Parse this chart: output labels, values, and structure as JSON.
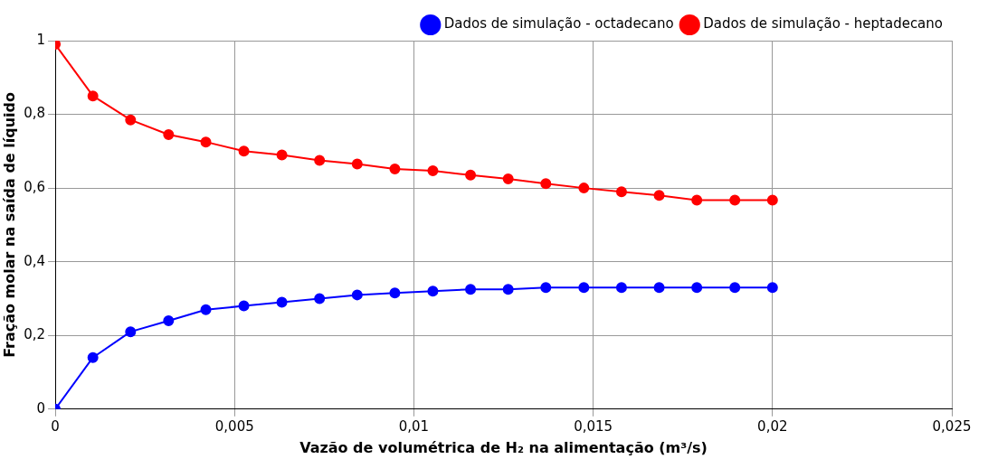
{
  "chart_data": {
    "type": "line",
    "xlabel": "Vazão de volumétrica de H₂ na alimentação (m³/s)",
    "ylabel": "Fração molar na saída de líquido",
    "x": [
      0,
      0.00105,
      0.0021,
      0.00316,
      0.0042,
      0.00526,
      0.00632,
      0.00737,
      0.00842,
      0.00947,
      0.01053,
      0.01158,
      0.01263,
      0.01368,
      0.01474,
      0.01579,
      0.01684,
      0.01789,
      0.01895,
      0.02
    ],
    "series": [
      {
        "name": "Dados de simulação - octadecano",
        "color": "#0000ff",
        "values": [
          0,
          0.14,
          0.21,
          0.24,
          0.27,
          0.28,
          0.29,
          0.3,
          0.31,
          0.315,
          0.32,
          0.325,
          0.325,
          0.33,
          0.33,
          0.33,
          0.33,
          0.33,
          0.33,
          0.33
        ]
      },
      {
        "name": "Dados de simulação - heptadecano",
        "color": "#ff0000",
        "values": [
          0.99,
          0.85,
          0.785,
          0.745,
          0.725,
          0.7,
          0.69,
          0.675,
          0.665,
          0.652,
          0.647,
          0.635,
          0.625,
          0.612,
          0.6,
          0.59,
          0.58,
          0.567,
          0.567,
          0.567
        ]
      }
    ],
    "xlim": [
      0,
      0.025
    ],
    "xticks": [
      0,
      {
        "value": 0.005,
        "label": "0,005"
      },
      {
        "value": 0.01,
        "label": "0,01"
      },
      {
        "value": 0.015,
        "label": "0,015"
      },
      {
        "value": 0.02,
        "label": "0,02"
      },
      {
        "value": 0.025,
        "label": "0,025"
      }
    ],
    "ylim": [
      0,
      1
    ],
    "yticks": [
      0,
      {
        "value": 0.2,
        "label": "0,2"
      },
      {
        "value": 0.4,
        "label": "0,4"
      },
      {
        "value": 0.6,
        "label": "0,6"
      },
      {
        "value": 0.8,
        "label": "0,8"
      },
      1
    ],
    "grid": true,
    "legend": "top right",
    "marker": "circle",
    "line_style": "solid"
  }
}
